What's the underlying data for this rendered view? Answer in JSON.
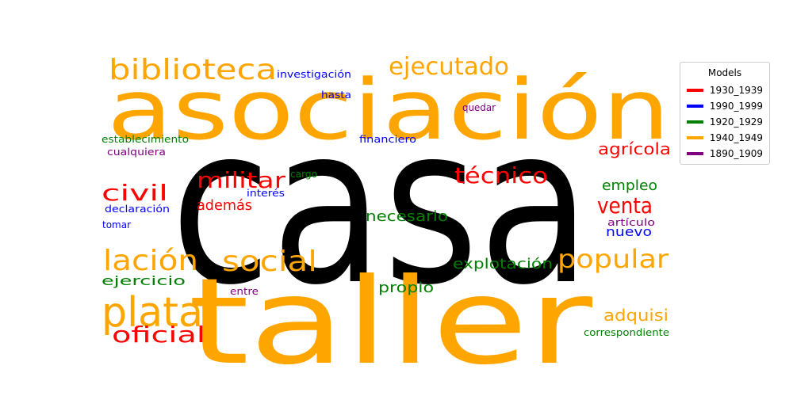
{
  "chart_data": {
    "type": "wordcloud",
    "legend": {
      "title": "Models",
      "placement": "top-right",
      "entries": [
        {
          "name": "1930_1939",
          "color": "#ff0000"
        },
        {
          "name": "1990_1999",
          "color": "#0000ff"
        },
        {
          "name": "1920_1929",
          "color": "#008000"
        },
        {
          "name": "1940_1949",
          "color": "#ffa500"
        },
        {
          "name": "1890_1909",
          "color": "#800080"
        }
      ]
    },
    "words": [
      {
        "text": "casa",
        "color": "#000000"
      },
      {
        "text": "taller",
        "color": "#ffa500"
      },
      {
        "text": "asociación",
        "color": "#ffa500"
      },
      {
        "text": "biblioteca",
        "color": "#ffa500"
      },
      {
        "text": "ejecutado",
        "color": "#ffa500"
      },
      {
        "text": "plata",
        "color": "#ffa500"
      },
      {
        "text": "lación",
        "color": "#ffa500"
      },
      {
        "text": "social",
        "color": "#ffa500"
      },
      {
        "text": "popular",
        "color": "#ffa500"
      },
      {
        "text": "adquisi",
        "color": "#ffa500"
      },
      {
        "text": "militar",
        "color": "#ff0000"
      },
      {
        "text": "técnico",
        "color": "#ff0000"
      },
      {
        "text": "civil",
        "color": "#ff0000"
      },
      {
        "text": "venta",
        "color": "#ff0000"
      },
      {
        "text": "oficial",
        "color": "#ff0000"
      },
      {
        "text": "agrícola",
        "color": "#ff0000"
      },
      {
        "text": "además",
        "color": "#ff0000"
      },
      {
        "text": "empleo",
        "color": "#008000"
      },
      {
        "text": "necesario",
        "color": "#008000"
      },
      {
        "text": "explotación",
        "color": "#008000"
      },
      {
        "text": "propio",
        "color": "#008000"
      },
      {
        "text": "ejercicio",
        "color": "#008000"
      },
      {
        "text": "establecimiento",
        "color": "#008000"
      },
      {
        "text": "cargo",
        "color": "#008000"
      },
      {
        "text": "correspondiente",
        "color": "#008000"
      },
      {
        "text": "nuevo",
        "color": "#0000ff"
      },
      {
        "text": "investigación",
        "color": "#0000ff"
      },
      {
        "text": "hasta",
        "color": "#0000ff"
      },
      {
        "text": "financiero",
        "color": "#0000ff"
      },
      {
        "text": "interés",
        "color": "#0000ff"
      },
      {
        "text": "declaración",
        "color": "#0000ff"
      },
      {
        "text": "tomar",
        "color": "#0000ff"
      },
      {
        "text": "quedar",
        "color": "#800080"
      },
      {
        "text": "cualquiera",
        "color": "#800080"
      },
      {
        "text": "entre",
        "color": "#800080"
      },
      {
        "text": "artículo",
        "color": "#800080"
      }
    ]
  }
}
